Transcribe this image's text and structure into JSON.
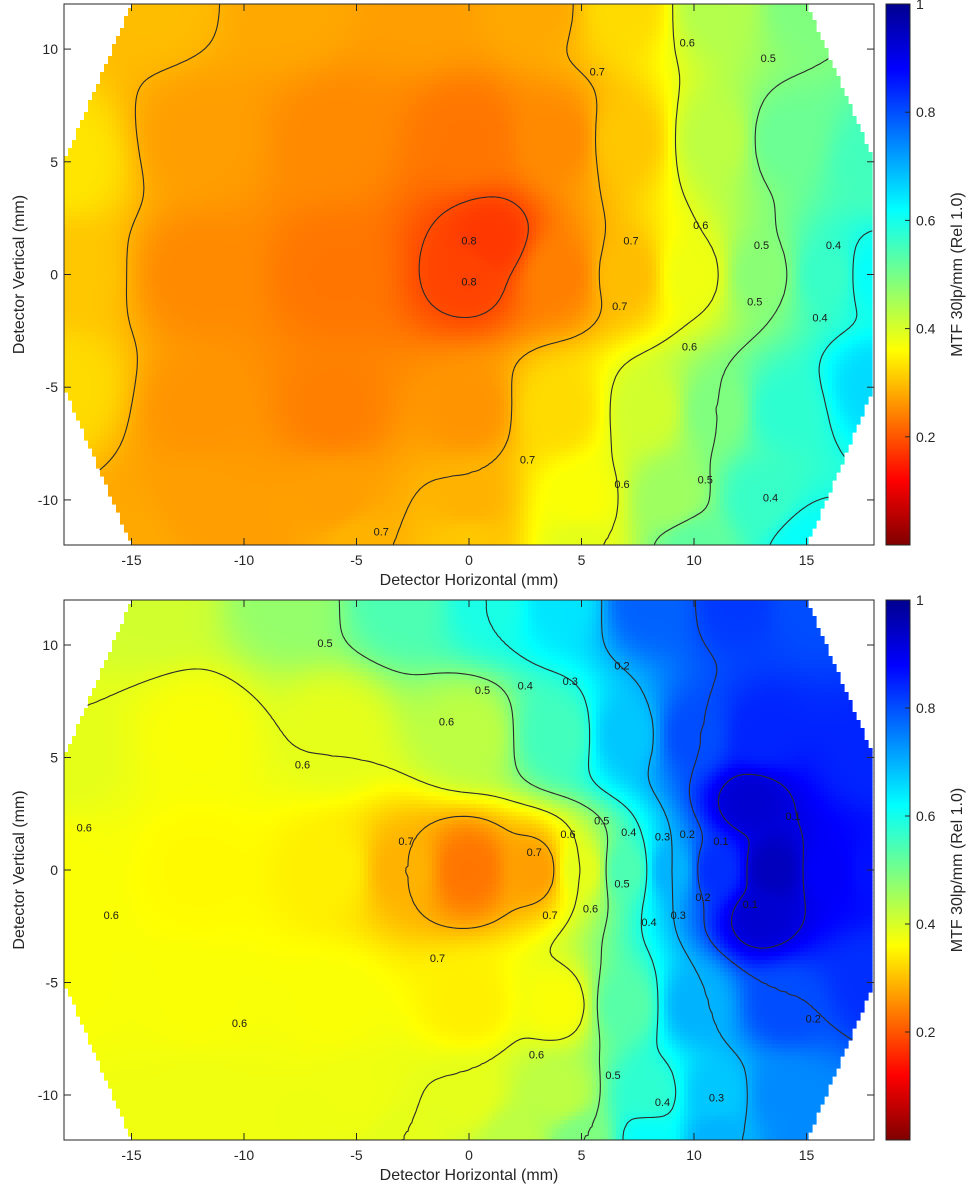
{
  "chart_data": [
    {
      "type": "heatmap",
      "variant": "filled-contour",
      "title": "",
      "xlabel": "Detector Horizontal (mm)",
      "ylabel": "Detector Vertical (mm)",
      "colorbar_label": "MTF 30lp/mm (Rel 1.0)",
      "colormap": "jet",
      "color_range": [
        0,
        1
      ],
      "colorbar_ticks": [
        "0.2",
        "0.4",
        "0.6",
        "0.8",
        "1"
      ],
      "xlim": [
        -18,
        18
      ],
      "ylim": [
        -12,
        12
      ],
      "xticks": [
        "-15",
        "-10",
        "-5",
        "0",
        "5",
        "10",
        "15"
      ],
      "yticks": [
        "-10",
        "-5",
        "0",
        "5",
        "10"
      ],
      "domain_outline": [
        [
          -15,
          12
        ],
        [
          15,
          12
        ],
        [
          18,
          5
        ],
        [
          18,
          -5
        ],
        [
          15,
          -12
        ],
        [
          -15,
          -12
        ],
        [
          -18,
          -5
        ],
        [
          -18,
          5
        ]
      ],
      "nodes": [
        [
          -18,
          5,
          0.65
        ],
        [
          -14,
          12,
          0.69
        ],
        [
          -8,
          12,
          0.71
        ],
        [
          -2,
          12,
          0.72
        ],
        [
          3,
          12,
          0.71
        ],
        [
          7,
          12,
          0.66
        ],
        [
          11,
          12,
          0.55
        ],
        [
          15,
          12,
          0.5
        ],
        [
          18,
          5,
          0.44
        ],
        [
          18,
          0,
          0.38
        ],
        [
          18,
          -5,
          0.34
        ],
        [
          15,
          -12,
          0.38
        ],
        [
          10,
          -12,
          0.47
        ],
        [
          5,
          -12,
          0.6
        ],
        [
          0,
          -12,
          0.68
        ],
        [
          -5,
          -12,
          0.7
        ],
        [
          -10,
          -12,
          0.72
        ],
        [
          -15,
          -12,
          0.71
        ],
        [
          -18,
          -5,
          0.66
        ],
        [
          -18,
          0,
          0.68
        ],
        [
          -12,
          6,
          0.72
        ],
        [
          -6,
          6,
          0.74
        ],
        [
          0,
          6,
          0.76
        ],
        [
          4,
          6,
          0.74
        ],
        [
          7,
          6,
          0.68
        ],
        [
          11,
          6,
          0.56
        ],
        [
          14,
          6,
          0.48
        ],
        [
          -12,
          0,
          0.74
        ],
        [
          -6,
          0,
          0.76
        ],
        [
          0,
          0,
          0.81
        ],
        [
          1,
          1.5,
          0.82
        ],
        [
          4,
          0,
          0.75
        ],
        [
          7,
          0,
          0.69
        ],
        [
          10,
          0,
          0.61
        ],
        [
          13,
          0,
          0.51
        ],
        [
          16,
          0,
          0.43
        ],
        [
          -12,
          -6,
          0.73
        ],
        [
          -6,
          -6,
          0.75
        ],
        [
          0,
          -6,
          0.73
        ],
        [
          4,
          -6,
          0.66
        ],
        [
          8,
          -6,
          0.58
        ],
        [
          11,
          -6,
          0.5
        ],
        [
          14,
          -6,
          0.42
        ],
        [
          -12,
          -10,
          0.72
        ],
        [
          -6,
          -10,
          0.72
        ],
        [
          0,
          -10,
          0.7
        ],
        [
          5,
          -10,
          0.62
        ],
        [
          9,
          -10,
          0.53
        ],
        [
          13,
          -10,
          0.43
        ]
      ],
      "contour_labels": [
        {
          "x": 5.7,
          "y": 9,
          "level": "0.7"
        },
        {
          "x": 9.7,
          "y": 10.3,
          "level": "0.6"
        },
        {
          "x": 13.3,
          "y": 9.6,
          "level": "0.5"
        },
        {
          "x": 0,
          "y": 1.5,
          "level": "0.8"
        },
        {
          "x": 0,
          "y": -0.3,
          "level": "0.8"
        },
        {
          "x": 7.2,
          "y": 1.5,
          "level": "0.7"
        },
        {
          "x": 10.3,
          "y": 2.2,
          "level": "0.6"
        },
        {
          "x": 13,
          "y": 1.3,
          "level": "0.5"
        },
        {
          "x": 16.2,
          "y": 1.3,
          "level": "0.4"
        },
        {
          "x": 6.7,
          "y": -1.4,
          "level": "0.7"
        },
        {
          "x": 9.8,
          "y": -3.2,
          "level": "0.6"
        },
        {
          "x": 12.7,
          "y": -1.2,
          "level": "0.5"
        },
        {
          "x": 15.6,
          "y": -1.9,
          "level": "0.4"
        },
        {
          "x": 2.6,
          "y": -8.2,
          "level": "0.7"
        },
        {
          "x": 6.8,
          "y": -9.3,
          "level": "0.6"
        },
        {
          "x": 10.5,
          "y": -9.1,
          "level": "0.5"
        },
        {
          "x": 13.4,
          "y": -9.9,
          "level": "0.4"
        },
        {
          "x": -3.9,
          "y": -11.4,
          "level": "0.7"
        }
      ]
    },
    {
      "type": "heatmap",
      "variant": "filled-contour",
      "title": "",
      "xlabel": "Detector Horizontal (mm)",
      "ylabel": "Detector Vertical (mm)",
      "colorbar_label": "MTF 30lp/mm (Rel 1.0)",
      "colormap": "jet",
      "color_range": [
        0,
        1
      ],
      "colorbar_ticks": [
        "0.2",
        "0.4",
        "0.6",
        "0.8",
        "1"
      ],
      "xlim": [
        -18,
        18
      ],
      "ylim": [
        -12,
        12
      ],
      "xticks": [
        "-15",
        "-10",
        "-5",
        "0",
        "5",
        "10",
        "15"
      ],
      "yticks": [
        "-10",
        "-5",
        "0",
        "5",
        "10"
      ],
      "domain_outline": [
        [
          -15,
          12
        ],
        [
          15,
          12
        ],
        [
          18,
          5
        ],
        [
          18,
          -5
        ],
        [
          15,
          -12
        ],
        [
          -15,
          -12
        ],
        [
          -18,
          -5
        ],
        [
          -18,
          5
        ]
      ],
      "nodes": [
        [
          -18,
          5,
          0.6
        ],
        [
          -14,
          12,
          0.58
        ],
        [
          -8,
          12,
          0.52
        ],
        [
          -3,
          12,
          0.45
        ],
        [
          1,
          12,
          0.4
        ],
        [
          4,
          12,
          0.35
        ],
        [
          8,
          12,
          0.22
        ],
        [
          12,
          12,
          0.18
        ],
        [
          15,
          12,
          0.2
        ],
        [
          18,
          5,
          0.16
        ],
        [
          18,
          0,
          0.14
        ],
        [
          18,
          -5,
          0.17
        ],
        [
          15,
          -12,
          0.26
        ],
        [
          11,
          -12,
          0.3
        ],
        [
          8,
          -12,
          0.38
        ],
        [
          5,
          -12,
          0.5
        ],
        [
          2,
          -12,
          0.56
        ],
        [
          -3,
          -12,
          0.6
        ],
        [
          -10,
          -12,
          0.61
        ],
        [
          -15,
          -12,
          0.61
        ],
        [
          -18,
          -5,
          0.62
        ],
        [
          -18,
          0,
          0.62
        ],
        [
          -12,
          6,
          0.62
        ],
        [
          -6,
          6,
          0.6
        ],
        [
          0,
          6,
          0.56
        ],
        [
          4,
          6,
          0.44
        ],
        [
          7,
          6,
          0.32
        ],
        [
          10,
          6,
          0.2
        ],
        [
          13,
          6,
          0.16
        ],
        [
          -12,
          0,
          0.63
        ],
        [
          -6,
          0,
          0.64
        ],
        [
          -3,
          0,
          0.7
        ],
        [
          0,
          0,
          0.76
        ],
        [
          3,
          0,
          0.72
        ],
        [
          5,
          0,
          0.6
        ],
        [
          7,
          0,
          0.45
        ],
        [
          9,
          0,
          0.3
        ],
        [
          11,
          0,
          0.17
        ],
        [
          13.5,
          0,
          0.06
        ],
        [
          16,
          0,
          0.12
        ],
        [
          12.5,
          3,
          0.08
        ],
        [
          13,
          -2,
          0.08
        ],
        [
          -12,
          -6,
          0.62
        ],
        [
          -6,
          -6,
          0.62
        ],
        [
          0,
          -6,
          0.64
        ],
        [
          4,
          -6,
          0.62
        ],
        [
          7,
          -6,
          0.46
        ],
        [
          10,
          -6,
          0.3
        ],
        [
          14,
          -6,
          0.2
        ],
        [
          -12,
          -10,
          0.61
        ],
        [
          -5,
          -10,
          0.61
        ],
        [
          0,
          -10,
          0.6
        ],
        [
          4,
          -10,
          0.56
        ],
        [
          8,
          -10,
          0.42
        ],
        [
          11,
          -10,
          0.32
        ],
        [
          14,
          -10,
          0.26
        ]
      ],
      "contour_labels": [
        {
          "x": -6.4,
          "y": 10.1,
          "level": "0.5"
        },
        {
          "x": 0.6,
          "y": 8,
          "level": "0.5"
        },
        {
          "x": 2.5,
          "y": 8.2,
          "level": "0.4"
        },
        {
          "x": 4.5,
          "y": 8.4,
          "level": "0.3"
        },
        {
          "x": 6.8,
          "y": 9.1,
          "level": "0.2"
        },
        {
          "x": -1,
          "y": 6.6,
          "level": "0.6"
        },
        {
          "x": -7.4,
          "y": 4.7,
          "level": "0.6"
        },
        {
          "x": -17.1,
          "y": 1.9,
          "level": "0.6"
        },
        {
          "x": -15.9,
          "y": -2,
          "level": "0.6"
        },
        {
          "x": -10.2,
          "y": -6.8,
          "level": "0.6"
        },
        {
          "x": -2.8,
          "y": 1.3,
          "level": "0.7"
        },
        {
          "x": 2.9,
          "y": 0.8,
          "level": "0.7"
        },
        {
          "x": 3.6,
          "y": -2,
          "level": "0.7"
        },
        {
          "x": -1.4,
          "y": -3.9,
          "level": "0.7"
        },
        {
          "x": 4.4,
          "y": 1.6,
          "level": "0.6"
        },
        {
          "x": 5.4,
          "y": -1.7,
          "level": "0.6"
        },
        {
          "x": 3,
          "y": -8.2,
          "level": "0.6"
        },
        {
          "x": 5.9,
          "y": 2.2,
          "level": "0.5"
        },
        {
          "x": 6.8,
          "y": -0.6,
          "level": "0.5"
        },
        {
          "x": 6.4,
          "y": -9.1,
          "level": "0.5"
        },
        {
          "x": 7.1,
          "y": 1.7,
          "level": "0.4"
        },
        {
          "x": 8,
          "y": -2.3,
          "level": "0.4"
        },
        {
          "x": 8.6,
          "y": -10.3,
          "level": "0.4"
        },
        {
          "x": 8.6,
          "y": 1.5,
          "level": "0.3"
        },
        {
          "x": 9.3,
          "y": -2,
          "level": "0.3"
        },
        {
          "x": 11,
          "y": -10.1,
          "level": "0.3"
        },
        {
          "x": 9.7,
          "y": 1.6,
          "level": "0.2"
        },
        {
          "x": 10.4,
          "y": -1.2,
          "level": "0.2"
        },
        {
          "x": 15.3,
          "y": -6.6,
          "level": "0.2"
        },
        {
          "x": 11.2,
          "y": 1.3,
          "level": "0.1"
        },
        {
          "x": 14.4,
          "y": 2.4,
          "level": "0.1"
        },
        {
          "x": 12.5,
          "y": -1.5,
          "level": "0.1"
        }
      ]
    }
  ]
}
